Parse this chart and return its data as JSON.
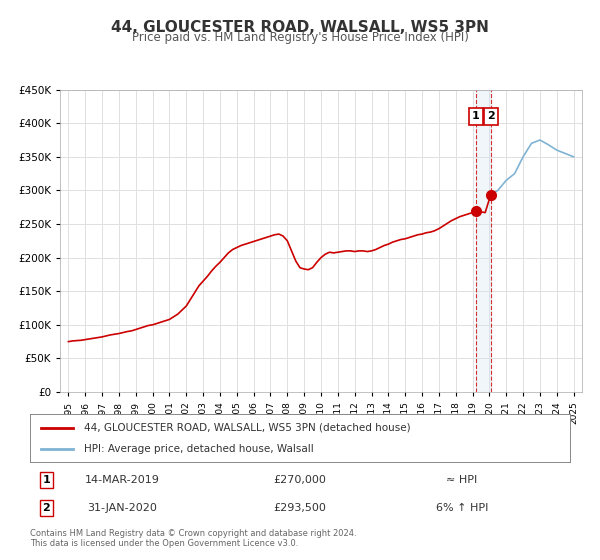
{
  "title": "44, GLOUCESTER ROAD, WALSALL, WS5 3PN",
  "subtitle": "Price paid vs. HM Land Registry's House Price Index (HPI)",
  "legend_line1": "44, GLOUCESTER ROAD, WALSALL, WS5 3PN (detached house)",
  "legend_line2": "HPI: Average price, detached house, Walsall",
  "footer1": "Contains HM Land Registry data © Crown copyright and database right 2024.",
  "footer2": "This data is licensed under the Open Government Licence v3.0.",
  "annotation1_label": "1",
  "annotation1_date": "14-MAR-2019",
  "annotation1_price": "£270,000",
  "annotation1_hpi": "≈ HPI",
  "annotation2_label": "2",
  "annotation2_date": "31-JAN-2020",
  "annotation2_price": "£293,500",
  "annotation2_hpi": "6% ↑ HPI",
  "red_line_color": "#cc0000",
  "blue_line_color": "#7fb3d3",
  "grid_color": "#e0e0e0",
  "background_color": "#ffffff",
  "annotation_line_color": "#cc0000",
  "shaded_region_color": "#d0e4f0",
  "ylim": [
    0,
    450000
  ],
  "yticks": [
    0,
    50000,
    100000,
    150000,
    200000,
    250000,
    300000,
    350000,
    400000,
    450000
  ],
  "xlim_start": 1994.5,
  "xlim_end": 2025.5,
  "point1_x": 2019.2,
  "point1_y": 270000,
  "point2_x": 2020.08,
  "point2_y": 293500,
  "shade_x1": 2019.2,
  "shade_x2": 2020.08,
  "hpi_red_data_x": [
    1995,
    1995.25,
    1995.5,
    1995.75,
    1996,
    1996.25,
    1996.5,
    1996.75,
    1997,
    1997.25,
    1997.5,
    1997.75,
    1998,
    1998.25,
    1998.5,
    1998.75,
    1999,
    1999.25,
    1999.5,
    1999.75,
    2000,
    2000.25,
    2000.5,
    2000.75,
    2001,
    2001.25,
    2001.5,
    2001.75,
    2002,
    2002.25,
    2002.5,
    2002.75,
    2003,
    2003.25,
    2003.5,
    2003.75,
    2004,
    2004.25,
    2004.5,
    2004.75,
    2005,
    2005.25,
    2005.5,
    2005.75,
    2006,
    2006.25,
    2006.5,
    2006.75,
    2007,
    2007.25,
    2007.5,
    2007.75,
    2008,
    2008.25,
    2008.5,
    2008.75,
    2009,
    2009.25,
    2009.5,
    2009.75,
    2010,
    2010.25,
    2010.5,
    2010.75,
    2011,
    2011.25,
    2011.5,
    2011.75,
    2012,
    2012.25,
    2012.5,
    2012.75,
    2013,
    2013.25,
    2013.5,
    2013.75,
    2014,
    2014.25,
    2014.5,
    2014.75,
    2015,
    2015.25,
    2015.5,
    2015.75,
    2016,
    2016.25,
    2016.5,
    2016.75,
    2017,
    2017.25,
    2017.5,
    2017.75,
    2018,
    2018.25,
    2018.5,
    2018.75,
    2019,
    2019.08,
    2019.2,
    2019.25,
    2019.5,
    2019.75,
    2020.08
  ],
  "hpi_red_data_y": [
    75000,
    76000,
    76500,
    77000,
    78000,
    79000,
    80000,
    81000,
    82000,
    83500,
    85000,
    86000,
    87000,
    88500,
    90000,
    91000,
    93000,
    95000,
    97000,
    99000,
    100000,
    102000,
    104000,
    106000,
    108000,
    112000,
    116000,
    122000,
    128000,
    138000,
    148000,
    158000,
    165000,
    172000,
    180000,
    187000,
    193000,
    200000,
    207000,
    212000,
    215000,
    218000,
    220000,
    222000,
    224000,
    226000,
    228000,
    230000,
    232000,
    234000,
    235000,
    232000,
    225000,
    210000,
    195000,
    185000,
    183000,
    182000,
    185000,
    193000,
    200000,
    205000,
    208000,
    207000,
    208000,
    209000,
    210000,
    210000,
    209000,
    210000,
    210000,
    209000,
    210000,
    212000,
    215000,
    218000,
    220000,
    223000,
    225000,
    227000,
    228000,
    230000,
    232000,
    234000,
    235000,
    237000,
    238000,
    240000,
    243000,
    247000,
    251000,
    255000,
    258000,
    261000,
    263000,
    265000,
    267000,
    268000,
    270000,
    270000,
    268000,
    267000,
    293500
  ],
  "hpi_blue_data_x": [
    2020.08,
    2020.5,
    2021,
    2021.5,
    2022,
    2022.5,
    2023,
    2023.5,
    2024,
    2024.5,
    2025
  ],
  "hpi_blue_data_y": [
    293500,
    300000,
    315000,
    325000,
    350000,
    370000,
    375000,
    368000,
    360000,
    355000,
    350000
  ]
}
